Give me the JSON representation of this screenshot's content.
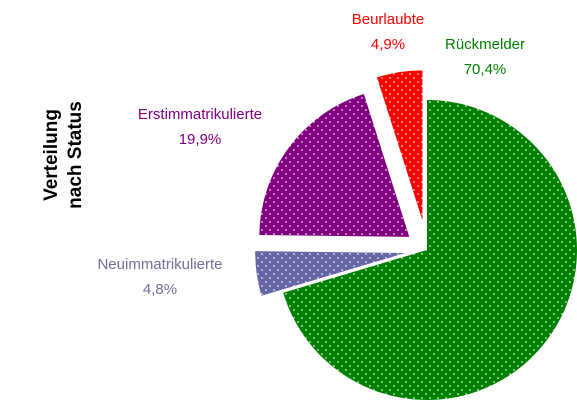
{
  "chart_data": {
    "type": "pie",
    "title": [
      "Verteilung",
      "nach Status"
    ],
    "categories": [
      "Rückmelder",
      "Neuimmatrikulierte",
      "Erstimmatrikulierte",
      "Beurlaubte"
    ],
    "values": [
      70.4,
      4.8,
      19.9,
      4.9
    ],
    "value_labels": [
      "70,4%",
      "4,8%",
      "19,9%",
      "4,9%"
    ],
    "colors": [
      "#008000",
      "#6666a6",
      "#800080",
      "#ff0000"
    ],
    "label_colors": [
      "#008000",
      "#7070a0",
      "#800080",
      "#ff0000"
    ]
  }
}
